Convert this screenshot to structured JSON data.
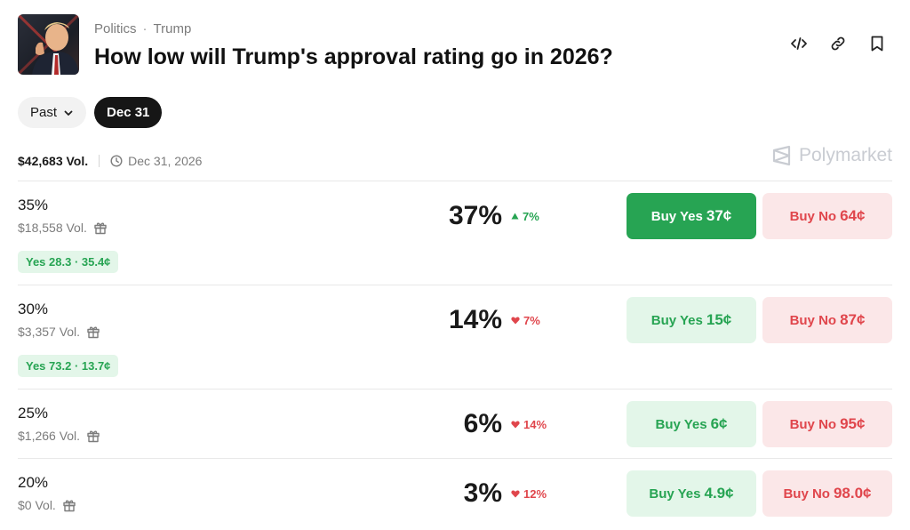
{
  "header": {
    "category": "Politics",
    "tag": "Trump",
    "title": "How low will Trump's approval rating go in 2026?",
    "icons": [
      "embed-icon",
      "link-icon",
      "bookmark-icon"
    ]
  },
  "filters": {
    "past_label": "Past",
    "date_label": "Dec 31"
  },
  "meta": {
    "volume": "$42,683 Vol.",
    "end_date": "Dec 31, 2026",
    "brand": "Polymarket"
  },
  "colors": {
    "yes": "#27a453",
    "yes_bg": "#e3f6e9",
    "no": "#e0464c",
    "no_bg": "#fbe7e8",
    "dark_pill": "#161616"
  },
  "outcomes": [
    {
      "label": "35%",
      "volume": "$18,558 Vol.",
      "reward": "Yes 28.3 · 35.4¢",
      "chance": "37%",
      "change": "7%",
      "direction": "up",
      "yes_label": "Buy Yes",
      "yes_price": "37¢",
      "no_label": "Buy No",
      "no_price": "64¢",
      "yes_active": true
    },
    {
      "label": "30%",
      "volume": "$3,357 Vol.",
      "reward": "Yes 73.2 · 13.7¢",
      "chance": "14%",
      "change": "7%",
      "direction": "down",
      "yes_label": "Buy Yes",
      "yes_price": "15¢",
      "no_label": "Buy No",
      "no_price": "87¢",
      "yes_active": false
    },
    {
      "label": "25%",
      "volume": "$1,266 Vol.",
      "chance": "6%",
      "change": "14%",
      "direction": "down",
      "yes_label": "Buy Yes",
      "yes_price": "6¢",
      "no_label": "Buy No",
      "no_price": "95¢",
      "yes_active": false
    },
    {
      "label": "20%",
      "volume": "$0 Vol.",
      "chance": "3%",
      "change": "12%",
      "direction": "down",
      "yes_label": "Buy Yes",
      "yes_price": "4.9¢",
      "no_label": "Buy No",
      "no_price": "98.0¢",
      "yes_active": false
    }
  ]
}
